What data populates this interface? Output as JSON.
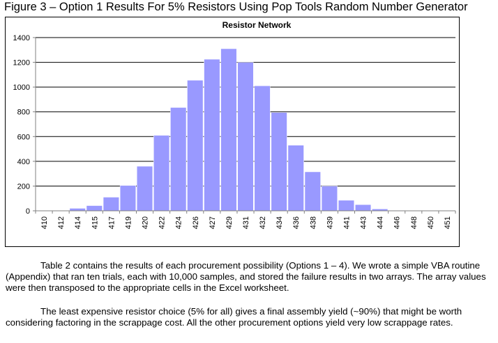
{
  "figure_title": "Figure 3 – Option 1 Results For 5% Resistors Using Pop Tools Random Number Generator",
  "paragraphs": [
    "Table 2 contains the results of each procurement possibility (Options 1 – 4). We wrote a simple VBA routine (Appendix) that ran ten trials, each with 10,000 samples, and stored the failure results in two arrays. The array values were then transposed to the appropriate cells in the Excel worksheet.",
    "The least expensive resistor choice (5% for all) gives a final assembly yield (~90%) that might be worth considering factoring in the scrappage cost. All the other procurement options yield very low scrappage rates."
  ],
  "colors": {
    "bar": "#9999ff",
    "bar_edge": "#ffffff",
    "grid": "#000000",
    "axis": "#808080"
  },
  "chart_data": {
    "type": "bar",
    "title": "Resistor Network",
    "xlabel": "",
    "ylabel": "",
    "ylim": [
      0,
      1400
    ],
    "yticks": [
      0,
      200,
      400,
      600,
      800,
      1000,
      1200,
      1400
    ],
    "grid": true,
    "categories": [
      "410",
      "412",
      "414",
      "415",
      "417",
      "419",
      "420",
      "422",
      "424",
      "426",
      "427",
      "429",
      "431",
      "432",
      "434",
      "436",
      "438",
      "439",
      "441",
      "443",
      "444",
      "446",
      "448",
      "450",
      "451"
    ],
    "values": [
      0,
      2,
      20,
      42,
      110,
      205,
      360,
      610,
      835,
      1055,
      1225,
      1310,
      1200,
      1010,
      795,
      530,
      315,
      200,
      85,
      50,
      15,
      4,
      2,
      0,
      0
    ]
  }
}
